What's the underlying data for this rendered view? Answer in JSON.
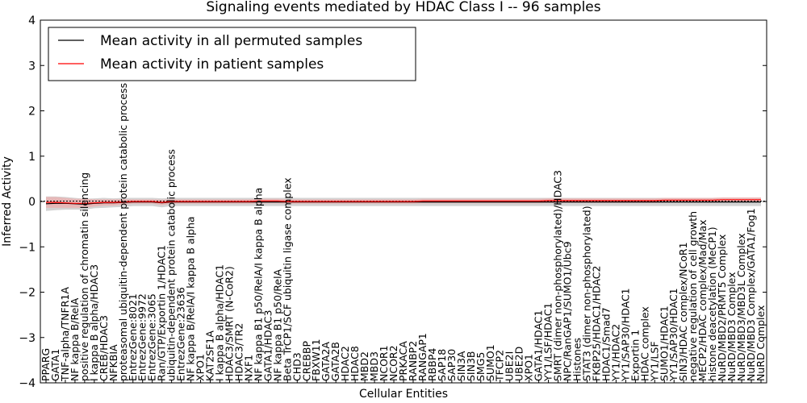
{
  "chart_data": {
    "type": "line",
    "title": "Signaling events mediated by HDAC Class I -- 96 samples",
    "xlabel": "Cellular Entities",
    "ylabel": "Inferred Activity",
    "ylim": [
      -4,
      4
    ],
    "yticks": [
      -4,
      -3,
      -2,
      -1,
      0,
      1,
      2,
      3,
      4
    ],
    "ytick_labels": [
      "−4",
      "−3",
      "−2",
      "−1",
      "0",
      "1",
      "2",
      "3",
      "4"
    ],
    "legend_position": "top-left",
    "grid": false,
    "categories": [
      "PPARG",
      "GATA1",
      "TNF-alpha/TNFR1A",
      "NF kappa B/RelA",
      "positive regulation of chromatin silencing",
      "I kappa B alpha/HDAC3",
      "CREB/HDAC3",
      "NFKBIA",
      "proteasomal ubiquitin-dependent protein catabolic process",
      "EntrezGene:8021",
      "EntrezGene:9972",
      "EntrezGene:3065",
      "Ran/GTP/Exportin 1/HDAC1",
      "ubiquitin-dependent protein catabolic process",
      "EntrezGene:23636",
      "NF kappa B/RelA/I kappa B alpha",
      "XPO1",
      "KAT2SF1A",
      "I kappa B alpha/HDAC1",
      "HDAC3/SMRT (N-CoR2)",
      "HDAC3/TR2",
      "NXF1",
      "NF kappa B1 p50/RelA/I kappa B alpha",
      "GATA1/HDAC3",
      "NF kappa B1 p50/RelA",
      "Beta TrCP1/SCF ubiquitin ligase complex",
      "CHD3",
      "CREBBP",
      "FBXW11",
      "GATA2A",
      "GATA2B",
      "HDAC2",
      "HDAC8",
      "MBD2",
      "MBD3",
      "NCOR1",
      "NCOR2",
      "PRKACA",
      "RANBP2",
      "RANGAP1",
      "RBBP4",
      "SAP18",
      "SAP30",
      "SIN3A",
      "SIN3B",
      "SMG5",
      "SUMO1",
      "TFCP2",
      "UBE2I",
      "UBE2D",
      "XPO1",
      "GATA1/HDAC1",
      "YY1/LSF/HDAC1",
      "SMRT (dimer non-phosphorylated)/HDAC3",
      "NPC/RanGAP1/SUMO1/Ubc9",
      "Histones",
      "STAT3 (dimer non-phosphorylated)",
      "FKBP25/HDAC1/HDAC2",
      "HDAC1/Smad7",
      "YY1/HDAC2",
      "YY1/SAP30/HDAC1",
      "Exportin 1",
      "HDAC complex",
      "YY1/LSF",
      "SUMO1/HDAC1",
      "YY1/SAP30/HDAC1",
      "SIN3/HDAC complex/NCoR1",
      "negative regulation of cell growth",
      "MECP2/HDAC complex/Mad/Max",
      "histone deacetylation (MeCP1)",
      "NuRD/MBD2/PRMT5 Complex",
      "NuRD/MBD3 Complex",
      "NuRD/MBD3/MBD3L Complex",
      "NuRD/MBD3 Complex/GATA1/Fog1",
      "NuRD Complex"
    ],
    "series": [
      {
        "name": "Mean activity in all permuted samples",
        "color": "#000000",
        "band_color": "#c8c8c8",
        "values": [
          -0.05,
          -0.04,
          -0.04,
          -0.05,
          -0.06,
          -0.04,
          -0.03,
          -0.03,
          -0.02,
          -0.01,
          -0.01,
          -0.01,
          -0.03,
          -0.01,
          -0.01,
          -0.01,
          -0.01,
          -0.01,
          -0.01,
          -0.01,
          -0.01,
          -0.01,
          -0.01,
          -0.01,
          -0.01,
          -0.01,
          -0.01,
          -0.01,
          -0.01,
          -0.01,
          -0.01,
          -0.01,
          -0.01,
          -0.01,
          -0.01,
          -0.01,
          -0.01,
          -0.01,
          -0.01,
          -0.01,
          -0.01,
          -0.01,
          -0.01,
          -0.01,
          -0.01,
          -0.01,
          -0.01,
          -0.01,
          -0.01,
          -0.01,
          -0.01,
          -0.01,
          -0.01,
          -0.01,
          -0.01,
          -0.01,
          -0.01,
          -0.01,
          -0.01,
          -0.01,
          -0.01,
          -0.01,
          -0.01,
          -0.01,
          -0.01,
          -0.01,
          -0.01,
          -0.01,
          -0.01,
          -0.01,
          -0.01,
          -0.01,
          -0.01,
          -0.01,
          -0.01
        ],
        "band_halfwidth": [
          0.16,
          0.15,
          0.14,
          0.13,
          0.12,
          0.11,
          0.11,
          0.1,
          0.1,
          0.09,
          0.09,
          0.09,
          0.1,
          0.09,
          0.09,
          0.09,
          0.09,
          0.09,
          0.09,
          0.09,
          0.09,
          0.09,
          0.09,
          0.09,
          0.09,
          0.09,
          0.09,
          0.09,
          0.09,
          0.09,
          0.09,
          0.09,
          0.09,
          0.09,
          0.09,
          0.09,
          0.09,
          0.09,
          0.09,
          0.09,
          0.09,
          0.09,
          0.09,
          0.09,
          0.09,
          0.09,
          0.09,
          0.09,
          0.09,
          0.09,
          0.09,
          0.09,
          0.09,
          0.09,
          0.09,
          0.09,
          0.09,
          0.09,
          0.09,
          0.09,
          0.09,
          0.09,
          0.09,
          0.09,
          0.09,
          0.09,
          0.09,
          0.09,
          0.09,
          0.09,
          0.09,
          0.09,
          0.09,
          0.09,
          0.09
        ]
      },
      {
        "name": "Mean activity in patient samples",
        "color": "#ff0000",
        "band_color": "#f4a6a6",
        "values": [
          -0.02,
          -0.02,
          -0.03,
          -0.04,
          -0.04,
          -0.03,
          -0.02,
          -0.02,
          -0.01,
          0,
          0,
          0,
          -0.02,
          0,
          0,
          0,
          0,
          0,
          0,
          0,
          0,
          0,
          0.01,
          0.01,
          0.01,
          0,
          0,
          0,
          0,
          0,
          0,
          0,
          0,
          0,
          0,
          0,
          0,
          0,
          0,
          0.01,
          0.01,
          0.01,
          0.01,
          0.01,
          0.01,
          0.01,
          0.01,
          0.01,
          0.01,
          0.01,
          0.01,
          0.01,
          0.02,
          0.02,
          0.02,
          0.02,
          0.02,
          0.02,
          0.02,
          0.02,
          0.02,
          0.02,
          0.02,
          0.02,
          0.03,
          0.03,
          0.03,
          0.03,
          0.03,
          0.03,
          0.04,
          0.04,
          0.04,
          0.04,
          0.04
        ],
        "band_halfwidth": [
          0.12,
          0.12,
          0.11,
          0.1,
          0.1,
          0.08,
          0.07,
          0.07,
          0.06,
          0.05,
          0.05,
          0.05,
          0.06,
          0.05,
          0.05,
          0.05,
          0.05,
          0.05,
          0.05,
          0.05,
          0.05,
          0.05,
          0.05,
          0.05,
          0.05,
          0.05,
          0.05,
          0.05,
          0.05,
          0.05,
          0.05,
          0.05,
          0.05,
          0.05,
          0.05,
          0.05,
          0.05,
          0.05,
          0.05,
          0.05,
          0.05,
          0.05,
          0.05,
          0.05,
          0.05,
          0.05,
          0.05,
          0.05,
          0.05,
          0.05,
          0.05,
          0.05,
          0.05,
          0.05,
          0.05,
          0.05,
          0.05,
          0.05,
          0.05,
          0.05,
          0.05,
          0.05,
          0.05,
          0.05,
          0.05,
          0.05,
          0.05,
          0.05,
          0.05,
          0.05,
          0.05,
          0.05,
          0.05,
          0.05,
          0.05
        ]
      }
    ]
  }
}
